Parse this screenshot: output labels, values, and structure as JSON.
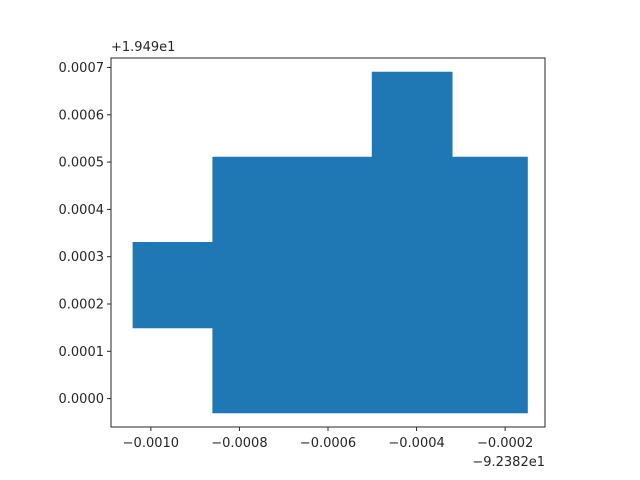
{
  "chart_data": {
    "type": "area",
    "title": "",
    "xlabel": "",
    "ylabel": "",
    "x_offset_label": "−9.2382e1",
    "y_offset_label": "+1.949e1",
    "xlim": [
      -0.00109,
      -0.00011
    ],
    "ylim": [
      -6e-05,
      0.00072
    ],
    "x_ticks": [
      {
        "value": -0.001,
        "label": "−0.0010"
      },
      {
        "value": -0.0008,
        "label": "−0.0008"
      },
      {
        "value": -0.0006,
        "label": "−0.0006"
      },
      {
        "value": -0.0004,
        "label": "−0.0004"
      },
      {
        "value": -0.0002,
        "label": "−0.0002"
      }
    ],
    "y_ticks": [
      {
        "value": 0.0,
        "label": "0.0000"
      },
      {
        "value": 0.0001,
        "label": "0.0001"
      },
      {
        "value": 0.0002,
        "label": "0.0002"
      },
      {
        "value": 0.0003,
        "label": "0.0003"
      },
      {
        "value": 0.0004,
        "label": "0.0004"
      },
      {
        "value": 0.0005,
        "label": "0.0005"
      },
      {
        "value": 0.0006,
        "label": "0.0006"
      },
      {
        "value": 0.0007,
        "label": "0.0007"
      }
    ],
    "grid": false,
    "series": [
      {
        "color": "#1f77b4",
        "polygon": [
          [
            -0.00086,
            -3e-05
          ],
          [
            -0.00015,
            -3e-05
          ],
          [
            -0.00015,
            0.00051
          ],
          [
            -0.00032,
            0.00051
          ],
          [
            -0.00032,
            0.00069
          ],
          [
            -0.0005,
            0.00069
          ],
          [
            -0.0005,
            0.00051
          ],
          [
            -0.00086,
            0.00051
          ],
          [
            -0.00086,
            0.00033
          ],
          [
            -0.00104,
            0.00033
          ],
          [
            -0.00104,
            0.00015
          ],
          [
            -0.00086,
            0.00015
          ]
        ]
      }
    ]
  }
}
